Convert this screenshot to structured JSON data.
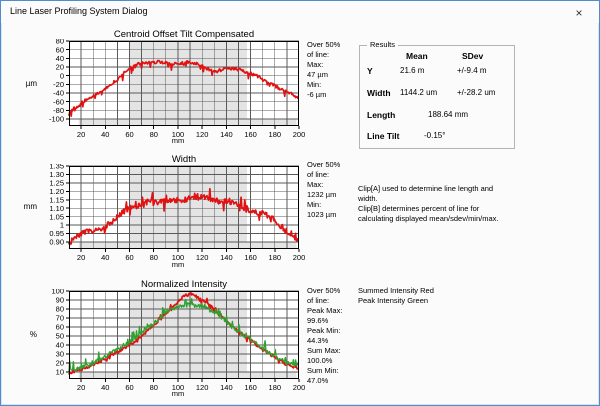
{
  "window": {
    "title": "Line Laser Profiling System Dialog",
    "close_glyph": "×"
  },
  "colors": {
    "dialog_border": "#4f8ccb",
    "plot_red": "#e11212",
    "plot_green": "#2fa12f",
    "clip_band": "#e4e4e4",
    "gridline": "#5a5a5a"
  },
  "results": {
    "legend": "Results",
    "headers": {
      "mean": "Mean",
      "sdev": "SDev"
    },
    "rows": [
      {
        "label": "Y",
        "mean": "21.6 m",
        "sdev": "+/-9.4 m"
      },
      {
        "label": "Width",
        "mean": "1144.2 um",
        "sdev": "+/-28.2 um"
      }
    ],
    "length": {
      "label": "Length",
      "value": "188.64 mm"
    },
    "line_tilt": {
      "label": "Line Tilt",
      "value": "-0.15°"
    }
  },
  "notes": {
    "clip_lines": [
      "Clip[A] used to determine line length and",
      "width.",
      "Clip[B] determines percent of line for",
      "calculating displayed mean/sdev/min/max."
    ],
    "intensity_legend_lines": [
      "Summed Intensity Red",
      "Peak Intensity Green"
    ]
  },
  "chart_data": [
    {
      "type": "line",
      "title": "Centroid Offset Tilt Compensated",
      "ylabel": "µm",
      "xlabel": "mm",
      "xlim": [
        10,
        200
      ],
      "ylim": [
        -100,
        80
      ],
      "grid": true,
      "clip_band_x": [
        60,
        157
      ],
      "x_ticks": [
        20,
        40,
        60,
        80,
        100,
        120,
        140,
        160,
        180,
        200
      ],
      "x_tick_labels": [
        "20",
        "40",
        "60",
        "80",
        "100",
        "120",
        "140",
        "160",
        "180",
        "200"
      ],
      "y_ticks": [
        80,
        60,
        40,
        20,
        0,
        -20,
        -40,
        -60,
        -80,
        -100
      ],
      "y_tick_labels": [
        "80",
        "60",
        "40",
        "20",
        "0",
        "-20",
        "-40",
        "-60",
        "-80",
        "-100"
      ],
      "annotation_lines": [
        "Over 50%",
        "of line:",
        "Max:",
        "47 µm",
        "Min:",
        "-6 µm"
      ],
      "series": [
        {
          "name": "Centroid Offset",
          "color": "#e11212",
          "noise": 3.5,
          "spike": 14,
          "spike_dir": -1,
          "keypoints": [
            [
              10,
              -88
            ],
            [
              14,
              -76
            ],
            [
              18,
              -68
            ],
            [
              22,
              -60
            ],
            [
              26,
              -52
            ],
            [
              30,
              -46
            ],
            [
              35,
              -38
            ],
            [
              40,
              -30
            ],
            [
              45,
              -20
            ],
            [
              50,
              -8
            ],
            [
              55,
              5
            ],
            [
              60,
              18
            ],
            [
              65,
              25
            ],
            [
              70,
              29
            ],
            [
              75,
              30
            ],
            [
              80,
              31
            ],
            [
              85,
              32
            ],
            [
              90,
              30
            ],
            [
              95,
              28
            ],
            [
              100,
              27
            ],
            [
              105,
              30
            ],
            [
              110,
              32
            ],
            [
              115,
              28
            ],
            [
              120,
              22
            ],
            [
              125,
              15
            ],
            [
              130,
              10
            ],
            [
              135,
              13
            ],
            [
              140,
              15
            ],
            [
              145,
              17
            ],
            [
              150,
              14
            ],
            [
              155,
              9
            ],
            [
              160,
              5
            ],
            [
              165,
              0
            ],
            [
              170,
              -7
            ],
            [
              175,
              -14
            ],
            [
              180,
              -24
            ],
            [
              185,
              -31
            ],
            [
              190,
              -37
            ],
            [
              195,
              -44
            ],
            [
              199,
              -50
            ]
          ]
        }
      ]
    },
    {
      "type": "line",
      "title": "Width",
      "ylabel": "mm",
      "xlabel": "mm",
      "xlim": [
        10,
        200
      ],
      "ylim": [
        0.9,
        1.35
      ],
      "grid": true,
      "clip_band_x": [
        60,
        157
      ],
      "x_ticks": [
        20,
        40,
        60,
        80,
        100,
        120,
        140,
        160,
        180,
        200
      ],
      "x_tick_labels": [
        "20",
        "40",
        "60",
        "80",
        "100",
        "120",
        "140",
        "160",
        "180",
        "200"
      ],
      "y_ticks": [
        1.35,
        1.3,
        1.25,
        1.2,
        1.15,
        1.1,
        1.05,
        1,
        0.95,
        0.9
      ],
      "y_tick_labels": [
        "1.35",
        "1.30",
        "1.25",
        "1.20",
        "1.15",
        "1.10",
        "1.05",
        "1",
        "0.95",
        "0.90"
      ],
      "annotation_lines": [
        "Over 50%",
        "of line:",
        "Max:",
        "1232 µm",
        "Min:",
        "1023 µm"
      ],
      "series": [
        {
          "name": "Width",
          "color": "#e11212",
          "noise": 0.016,
          "spike": 0.05,
          "spike_dir": 0,
          "keypoints": [
            [
              10,
              0.88
            ],
            [
              15,
              0.93
            ],
            [
              20,
              0.95
            ],
            [
              25,
              0.96
            ],
            [
              30,
              0.965
            ],
            [
              35,
              0.975
            ],
            [
              40,
              0.99
            ],
            [
              45,
              1.02
            ],
            [
              50,
              1.05
            ],
            [
              55,
              1.08
            ],
            [
              60,
              1.1
            ],
            [
              65,
              1.11
            ],
            [
              70,
              1.12
            ],
            [
              75,
              1.14
            ],
            [
              80,
              1.13
            ],
            [
              85,
              1.14
            ],
            [
              90,
              1.15
            ],
            [
              95,
              1.14
            ],
            [
              100,
              1.15
            ],
            [
              105,
              1.15
            ],
            [
              110,
              1.16
            ],
            [
              115,
              1.16
            ],
            [
              120,
              1.17
            ],
            [
              125,
              1.16
            ],
            [
              130,
              1.15
            ],
            [
              135,
              1.14
            ],
            [
              140,
              1.14
            ],
            [
              145,
              1.13
            ],
            [
              150,
              1.12
            ],
            [
              155,
              1.1
            ],
            [
              160,
              1.08
            ],
            [
              165,
              1.075
            ],
            [
              170,
              1.07
            ],
            [
              175,
              1.05
            ],
            [
              180,
              1.03
            ],
            [
              185,
              0.99
            ],
            [
              190,
              0.96
            ],
            [
              195,
              0.94
            ],
            [
              199,
              0.91
            ]
          ]
        }
      ]
    },
    {
      "type": "line",
      "title": "Normalized Intensity",
      "ylabel": "%",
      "xlabel": "mm",
      "xlim": [
        10,
        200
      ],
      "ylim": [
        10,
        100
      ],
      "grid": true,
      "clip_band_x": [
        60,
        157
      ],
      "x_ticks": [
        20,
        40,
        60,
        80,
        100,
        120,
        140,
        160,
        180,
        200
      ],
      "x_tick_labels": [
        "20",
        "40",
        "60",
        "80",
        "100",
        "120",
        "140",
        "160",
        "180",
        "200"
      ],
      "y_ticks": [
        100,
        90,
        80,
        70,
        60,
        50,
        40,
        30,
        20,
        10
      ],
      "y_tick_labels": [
        "100",
        "90",
        "80",
        "70",
        "60",
        "50",
        "40",
        "30",
        "20",
        "10"
      ],
      "annotation_lines": [
        "Over 50%",
        "of line:",
        "Peak Max:",
        "99.6%",
        "Peak Min:",
        "44.3%",
        "Sum Max:",
        "100.0%",
        "Sum Min:",
        "47.0%"
      ],
      "series": [
        {
          "name": "Summed Intensity",
          "color": "#e11212",
          "noise": 1.6,
          "spike": 4,
          "spike_dir": 0,
          "keypoints": [
            [
              10,
              8
            ],
            [
              20,
              13
            ],
            [
              30,
              18
            ],
            [
              40,
              25
            ],
            [
              50,
              32
            ],
            [
              60,
              40
            ],
            [
              70,
              50
            ],
            [
              80,
              62
            ],
            [
              90,
              75
            ],
            [
              95,
              82
            ],
            [
              100,
              88
            ],
            [
              105,
              94
            ],
            [
              110,
              97
            ],
            [
              115,
              94
            ],
            [
              120,
              90
            ],
            [
              125,
              86
            ],
            [
              130,
              80
            ],
            [
              135,
              74
            ],
            [
              140,
              68
            ],
            [
              145,
              61
            ],
            [
              150,
              55
            ],
            [
              155,
              50
            ],
            [
              160,
              45
            ],
            [
              165,
              40
            ],
            [
              170,
              35
            ],
            [
              175,
              31
            ],
            [
              180,
              27
            ],
            [
              185,
              22
            ],
            [
              190,
              18
            ],
            [
              195,
              16
            ],
            [
              199,
              15
            ]
          ]
        },
        {
          "name": "Peak Intensity",
          "color": "#2fa12f",
          "noise": 2.2,
          "spike": 9,
          "spike_dir": 1,
          "keypoints": [
            [
              10,
              12
            ],
            [
              20,
              15
            ],
            [
              30,
              20
            ],
            [
              40,
              27
            ],
            [
              50,
              36
            ],
            [
              60,
              43
            ],
            [
              70,
              53
            ],
            [
              80,
              64
            ],
            [
              90,
              76
            ],
            [
              95,
              80
            ],
            [
              100,
              82
            ],
            [
              105,
              84
            ],
            [
              110,
              85
            ],
            [
              115,
              83
            ],
            [
              120,
              83
            ],
            [
              125,
              80
            ],
            [
              130,
              76
            ],
            [
              135,
              71
            ],
            [
              140,
              65
            ],
            [
              145,
              60
            ],
            [
              150,
              55
            ],
            [
              155,
              50
            ],
            [
              160,
              46
            ],
            [
              165,
              41
            ],
            [
              170,
              36
            ],
            [
              175,
              32
            ],
            [
              180,
              28
            ],
            [
              185,
              24
            ],
            [
              190,
              20
            ],
            [
              195,
              18
            ],
            [
              199,
              17
            ]
          ]
        }
      ]
    }
  ]
}
